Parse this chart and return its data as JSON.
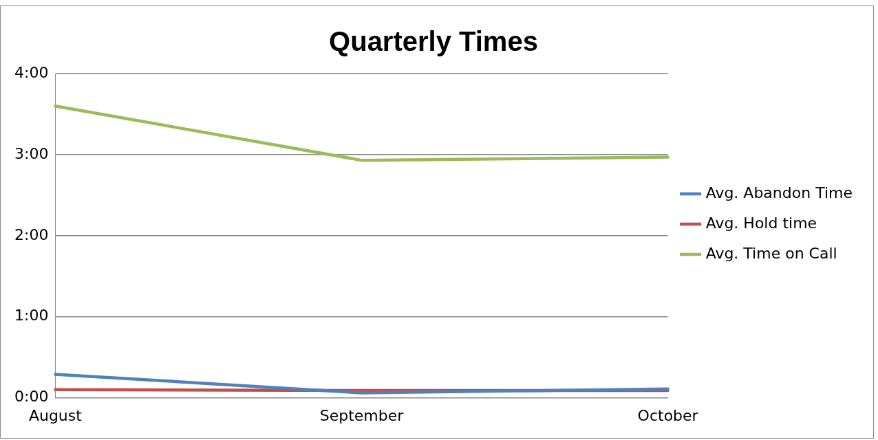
{
  "chart_data": {
    "type": "line",
    "title": "Quarterly Times",
    "categories": [
      "August",
      "September",
      "October"
    ],
    "series": [
      {
        "name": "Avg. Abandon Time",
        "color": "#4f81bd",
        "values": [
          0.29,
          0.06,
          0.11
        ]
      },
      {
        "name": "Avg. Hold time",
        "color": "#c0504d",
        "values": [
          0.1,
          0.09,
          0.09
        ]
      },
      {
        "name": "Avg. Time on Call",
        "color": "#9bbb59",
        "values": [
          3.6,
          2.93,
          2.97
        ]
      }
    ],
    "ylim": [
      0,
      4
    ],
    "yticks": [
      {
        "value": 0,
        "label": "0:00"
      },
      {
        "value": 1,
        "label": "1:00"
      },
      {
        "value": 2,
        "label": "2:00"
      },
      {
        "value": 3,
        "label": "3:00"
      },
      {
        "value": 4,
        "label": "4:00"
      }
    ],
    "grid": "y",
    "legend": "right",
    "marker": "none"
  }
}
